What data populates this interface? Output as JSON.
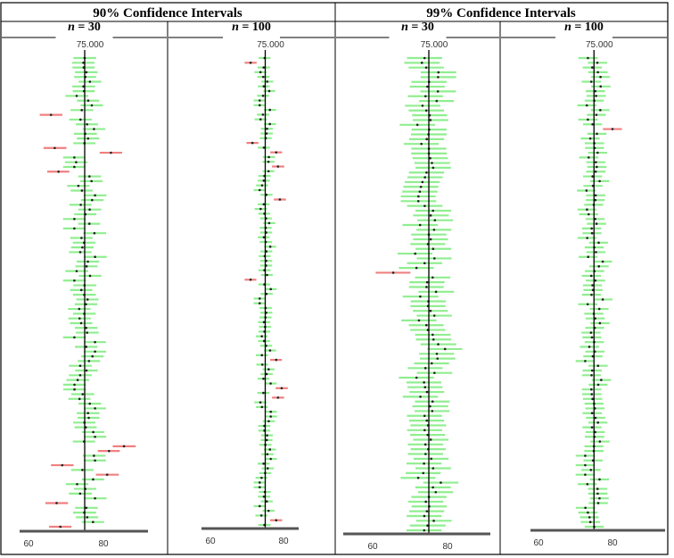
{
  "groups": [
    {
      "title": "90% Confidence Intervals"
    },
    {
      "title": "99% Confidence Intervals"
    }
  ],
  "chart_data": [
    {
      "type": "interval",
      "title": "",
      "n_label": "n = 30",
      "n_var": "n",
      "n_eq": " = 30",
      "confidence": 0.9,
      "sample_size": 30,
      "mu": 75,
      "mu_label": "75.000",
      "xlim": [
        57,
        93
      ],
      "x_ticks": [
        60,
        80
      ],
      "x_tick_labels": [
        "60",
        "80"
      ],
      "num_intervals": 100,
      "misses": [
        {
          "index": 12,
          "mean": 66.0
        },
        {
          "index": 19,
          "mean": 67.0
        },
        {
          "index": 20,
          "mean": 82.0
        },
        {
          "index": 24,
          "mean": 68.0
        },
        {
          "index": 82,
          "mean": 85.5
        },
        {
          "index": 83,
          "mean": 81.5
        },
        {
          "index": 86,
          "mean": 69.0
        },
        {
          "index": 88,
          "mean": 81.0
        },
        {
          "index": 94,
          "mean": 67.5
        },
        {
          "index": 99,
          "mean": 68.5
        }
      ],
      "colors": {
        "hit": "#90ee90",
        "miss": "#f08080"
      }
    },
    {
      "type": "interval",
      "title": "",
      "n_label": "n = 100",
      "n_var": "n",
      "n_eq": " = 100",
      "confidence": 0.9,
      "sample_size": 100,
      "mu": 75,
      "mu_label": "75.000",
      "xlim": [
        57,
        93
      ],
      "x_ticks": [
        60,
        80
      ],
      "x_tick_labels": [
        "60",
        "80"
      ],
      "num_intervals": 100,
      "misses": [
        {
          "index": 1,
          "mean": 71.0
        },
        {
          "index": 18,
          "mean": 71.5
        },
        {
          "index": 20,
          "mean": 78.0
        },
        {
          "index": 23,
          "mean": 78.5
        },
        {
          "index": 30,
          "mean": 79.0
        },
        {
          "index": 47,
          "mean": 71.0
        },
        {
          "index": 64,
          "mean": 78.0
        },
        {
          "index": 70,
          "mean": 79.5
        },
        {
          "index": 72,
          "mean": 78.5
        },
        {
          "index": 98,
          "mean": 78.0
        }
      ],
      "colors": {
        "hit": "#90ee90",
        "miss": "#f08080"
      }
    },
    {
      "type": "interval",
      "title": "",
      "n_label": "n = 30",
      "n_var": "n",
      "n_eq": " = 30",
      "confidence": 0.99,
      "sample_size": 30,
      "mu": 75,
      "mu_label": "75.000",
      "xlim": [
        57,
        93
      ],
      "x_ticks": [
        60,
        80
      ],
      "x_tick_labels": [
        "60",
        "80"
      ],
      "num_intervals": 100,
      "misses": [
        {
          "index": 45,
          "mean": 65.5
        }
      ],
      "colors": {
        "hit": "#90ee90",
        "miss": "#f08080"
      }
    },
    {
      "type": "interval",
      "title": "",
      "n_label": "n = 100",
      "n_var": "n",
      "n_eq": " = 100",
      "confidence": 0.99,
      "sample_size": 100,
      "mu": 75,
      "mu_label": "75.000",
      "xlim": [
        57,
        93
      ],
      "x_ticks": [
        60,
        80
      ],
      "x_tick_labels": [
        "60",
        "80"
      ],
      "num_intervals": 100,
      "misses": [
        {
          "index": 15,
          "mean": 80.0
        }
      ],
      "colors": {
        "hit": "#90ee90",
        "miss": "#f08080"
      }
    }
  ]
}
